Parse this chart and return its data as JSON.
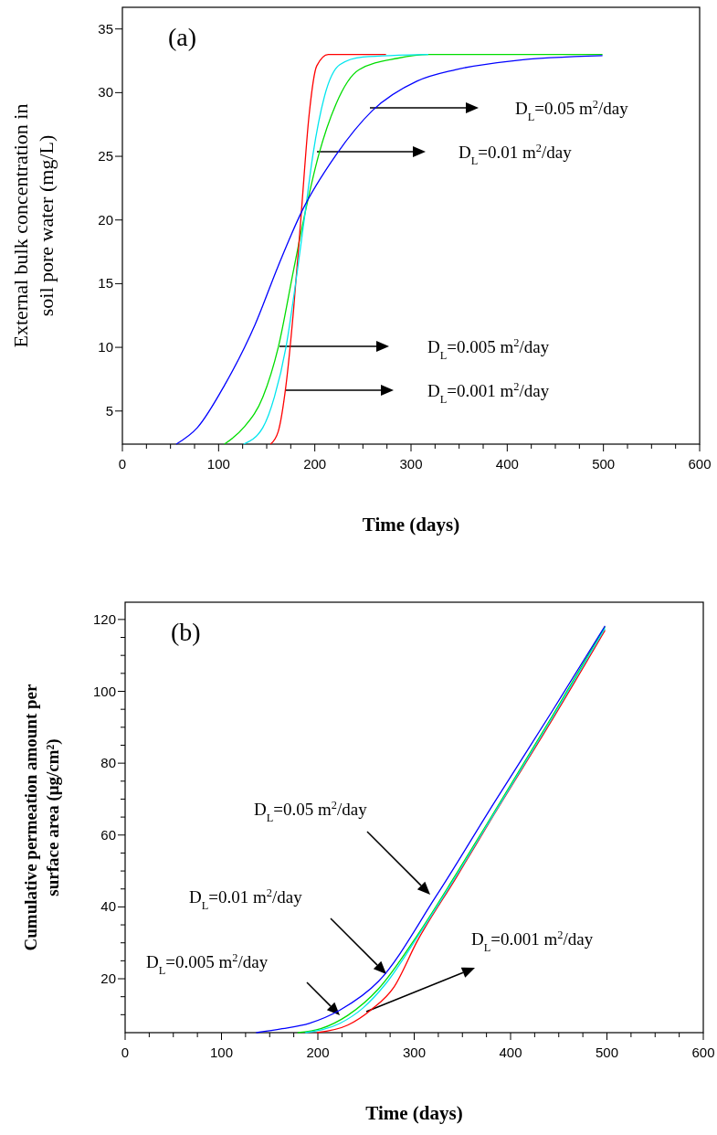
{
  "chart_data": [
    {
      "type": "line",
      "title": "(a)",
      "xlabel": "Time (days)",
      "ylabel": "External bulk concentration in soil pore water (mg/L)",
      "xlim": [
        0,
        600
      ],
      "ylim": [
        2.4,
        36.7
      ],
      "xticks": [
        0,
        {
          "value": 25,
          "label": null
        },
        {
          "value": 50,
          "label": null
        },
        {
          "value": 75,
          "label": null
        },
        100,
        {
          "value": 125,
          "label": null
        },
        {
          "value": 150,
          "label": null
        },
        {
          "value": 175,
          "label": null
        },
        200,
        {
          "value": 225,
          "label": null
        },
        {
          "value": 250,
          "label": null
        },
        {
          "value": 275,
          "label": null
        },
        300,
        {
          "value": 325,
          "label": null
        },
        {
          "value": 350,
          "label": null
        },
        {
          "value": 375,
          "label": null
        },
        400,
        {
          "value": 425,
          "label": null
        },
        {
          "value": 450,
          "label": null
        },
        {
          "value": 475,
          "label": null
        },
        500,
        {
          "value": 525,
          "label": null
        },
        {
          "value": 550,
          "label": null
        },
        {
          "value": 575,
          "label": null
        },
        600
      ],
      "yticks": [
        5,
        10,
        15,
        20,
        25,
        30,
        35
      ],
      "grid": false,
      "marker": "none",
      "line_style": "solid",
      "series": [
        {
          "color": "#0000ff",
          "x": [
            56,
            78,
            106,
            138,
            162,
            186,
            222,
            260,
            306,
            346,
            406,
            499
          ],
          "values": [
            2.4,
            3.7,
            7.0,
            11.8,
            16.4,
            20.6,
            25.1,
            28.6,
            30.9,
            31.8,
            32.5,
            32.9
          ]
        },
        {
          "color": "#00dd00",
          "x": [
            106,
            126,
            146,
            162,
            178,
            190,
            204,
            222,
            246,
            286,
            318,
            499
          ],
          "values": [
            2.4,
            3.7,
            6.1,
            10.0,
            16.1,
            20.6,
            25.1,
            29.1,
            31.8,
            32.7,
            33.0,
            33.0
          ]
        },
        {
          "color": "#00e5ee",
          "x": [
            126,
            146,
            158,
            170,
            182,
            190,
            198,
            210,
            226,
            250,
            318
          ],
          "values": [
            2.4,
            3.7,
            6.1,
            10.0,
            16.1,
            20.6,
            25.1,
            29.7,
            32.2,
            32.8,
            33.0
          ]
        },
        {
          "color": "#ff0000",
          "x": [
            154,
            162,
            170,
            178,
            186,
            194,
            202,
            214,
            274
          ],
          "values": [
            2.4,
            3.4,
            7.0,
            13.0,
            20.6,
            28.2,
            32.1,
            33.0,
            33.0
          ]
        }
      ],
      "annotations": [
        "D$_{L}$=0.05 m$^{2}$/day",
        "D$_{L}$=0.01 m$^{2}$/day",
        "D$_{L}$=0.005 m$^{2}$/day",
        "D$_{L}$=0.001 m$^{2}$/day"
      ]
    },
    {
      "type": "line",
      "title": "(b)",
      "xlabel": "Time (days)",
      "ylabel": "Cumulative permeation amount per surface area (μg/cm²)",
      "xlim": [
        0,
        600
      ],
      "ylim": [
        5,
        124.8
      ],
      "xticks": [
        0,
        {
          "value": 25,
          "label": null
        },
        {
          "value": 50,
          "label": null
        },
        {
          "value": 75,
          "label": null
        },
        100,
        {
          "value": 125,
          "label": null
        },
        {
          "value": 150,
          "label": null
        },
        {
          "value": 175,
          "label": null
        },
        200,
        {
          "value": 225,
          "label": null
        },
        {
          "value": 250,
          "label": null
        },
        {
          "value": 275,
          "label": null
        },
        300,
        {
          "value": 325,
          "label": null
        },
        {
          "value": 350,
          "label": null
        },
        {
          "value": 375,
          "label": null
        },
        400,
        {
          "value": 425,
          "label": null
        },
        {
          "value": 450,
          "label": null
        },
        {
          "value": 475,
          "label": null
        },
        500,
        {
          "value": 525,
          "label": null
        },
        {
          "value": 550,
          "label": null
        },
        {
          "value": 575,
          "label": null
        },
        600
      ],
      "yticks": [
        {
          "value": 10,
          "label": null
        },
        {
          "value": 15,
          "label": null
        },
        20,
        {
          "value": 25,
          "label": null
        },
        {
          "value": 30,
          "label": null
        },
        {
          "value": 35,
          "label": null
        },
        40,
        {
          "value": 45,
          "label": null
        },
        {
          "value": 50,
          "label": null
        },
        {
          "value": 55,
          "label": null
        },
        60,
        {
          "value": 65,
          "label": null
        },
        {
          "value": 70,
          "label": null
        },
        {
          "value": 75,
          "label": null
        },
        80,
        {
          "value": 85,
          "label": null
        },
        {
          "value": 90,
          "label": null
        },
        {
          "value": 95,
          "label": null
        },
        100,
        {
          "value": 105,
          "label": null
        },
        {
          "value": 110,
          "label": null
        },
        {
          "value": 115,
          "label": null
        },
        120
      ],
      "grid": false,
      "marker": "none",
      "line_style": "solid",
      "series": [
        {
          "color": "#0000ff",
          "x": [
            136,
            163,
            191,
            223,
            263,
            323,
            383,
            443,
            498
          ],
          "values": [
            5,
            6.1,
            7.6,
            11.3,
            19.3,
            43.1,
            69.0,
            94.4,
            118.2
          ]
        },
        {
          "color": "#00dd00",
          "x": [
            179,
            203,
            231,
            263,
            303,
            343,
            383,
            443,
            498
          ],
          "values": [
            5,
            6.1,
            9.8,
            17.2,
            32.0,
            48.9,
            66.4,
            93.0,
            118.0
          ]
        },
        {
          "color": "#00e5ee",
          "x": [
            187,
            223,
            247,
            271,
            303,
            343,
            383,
            443,
            498
          ],
          "values": [
            5,
            7.6,
            11.9,
            18.8,
            31.5,
            48.4,
            66.0,
            92.5,
            117.5
          ]
        },
        {
          "color": "#ff0000",
          "x": [
            199,
            231,
            255,
            279,
            303,
            343,
            383,
            443,
            498
          ],
          "values": [
            5,
            7.1,
            11.3,
            17.7,
            30.4,
            47.9,
            65.8,
            92.0,
            117.0
          ]
        }
      ],
      "annotations": [
        "D$_{L}$=0.05 m$^{2}$/day",
        "D$_{L}$=0.01 m$^{2}$/day",
        "D$_{L}$=0.005 m$^{2}$/day",
        "D$_{L}$=0.001 m$^{2}$/day"
      ]
    }
  ]
}
